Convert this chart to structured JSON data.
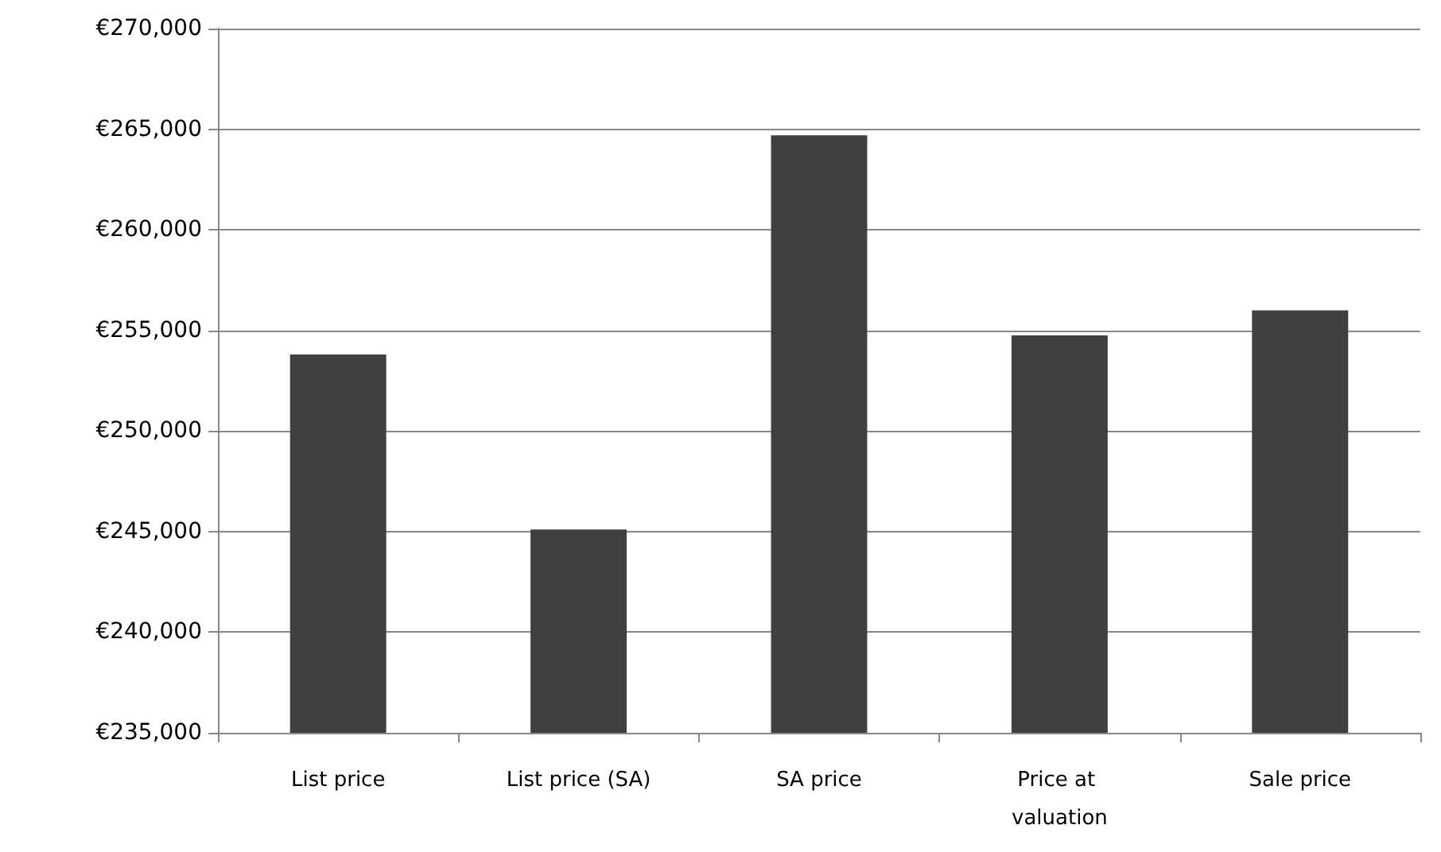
{
  "chart_data": {
    "type": "bar",
    "categories": [
      "List price",
      "List price (SA)",
      "SA price",
      "Price at valuation",
      "Sale price"
    ],
    "values": [
      253800,
      245100,
      264700,
      254750,
      256000
    ],
    "color": "#404040",
    "ylim": [
      235000,
      270000
    ],
    "yticks": [
      {
        "value": 235000,
        "label": "€235,000"
      },
      {
        "value": 240000,
        "label": "€240,000"
      },
      {
        "value": 245000,
        "label": "€245,000"
      },
      {
        "value": 250000,
        "label": "€250,000"
      },
      {
        "value": 255000,
        "label": "€255,000"
      },
      {
        "value": 260000,
        "label": "€260,000"
      },
      {
        "value": 265000,
        "label": "€265,000"
      },
      {
        "value": 270000,
        "label": "€270,000"
      }
    ],
    "grid": "y"
  }
}
